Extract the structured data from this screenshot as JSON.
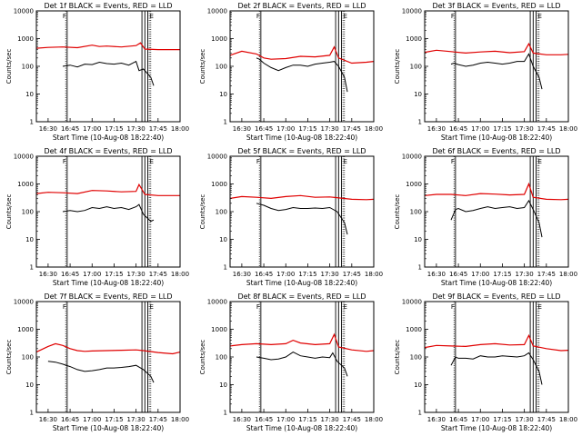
{
  "ylabel": "Counts/sec",
  "xlabel": "Start Time (10-Aug-08 18:22:40)",
  "x_ticks": [
    "16:30",
    "16:45",
    "17:00",
    "17:15",
    "17:30",
    "17:45",
    "18:00"
  ],
  "y_ticks": [
    "1",
    "10",
    "100",
    "1000",
    "10000"
  ],
  "marker_labels": [
    "F",
    "E"
  ],
  "colors": {
    "events": "#000000",
    "lld": "#e00000",
    "axes": "#000000"
  },
  "chart_data": [
    {
      "type": "line",
      "title": "Det 1f BLACK = Events, RED = LLD",
      "xlim": [
        "16:22",
        "18:00"
      ],
      "ylim": [
        1,
        10000
      ],
      "yscale": "log",
      "markers": {
        "solid": [
          "16:43",
          "17:34",
          "17:36",
          "17:38"
        ],
        "dotted": [
          "16:42",
          "17:39",
          "17:40"
        ]
      },
      "series": [
        {
          "name": "Events",
          "x": [
            "16:40",
            "16:45",
            "16:50",
            "16:55",
            "17:00",
            "17:05",
            "17:10",
            "17:15",
            "17:20",
            "17:25",
            "17:30",
            "17:32",
            "17:35",
            "17:40",
            "17:42"
          ],
          "values": [
            100,
            110,
            95,
            120,
            115,
            140,
            125,
            120,
            130,
            110,
            150,
            70,
            80,
            40,
            20
          ]
        },
        {
          "name": "LLD",
          "x": [
            "16:22",
            "16:30",
            "16:40",
            "16:50",
            "17:00",
            "17:05",
            "17:10",
            "17:20",
            "17:30",
            "17:33",
            "17:36",
            "17:45",
            "17:55",
            "18:00"
          ],
          "values": [
            450,
            480,
            500,
            470,
            580,
            520,
            540,
            500,
            560,
            700,
            420,
            400,
            400,
            400
          ]
        }
      ]
    },
    {
      "type": "line",
      "title": "Det 2f BLACK = Events, RED = LLD",
      "xlim": [
        "16:22",
        "18:00"
      ],
      "ylim": [
        1,
        10000
      ],
      "yscale": "log",
      "markers": {
        "solid": [
          "16:43",
          "17:34",
          "17:36",
          "17:38"
        ],
        "dotted": [
          "16:42",
          "17:39",
          "17:40"
        ]
      },
      "series": [
        {
          "name": "Events",
          "x": [
            "16:40",
            "16:42",
            "16:45",
            "16:50",
            "16:55",
            "17:00",
            "17:05",
            "17:10",
            "17:15",
            "17:20",
            "17:25",
            "17:30",
            "17:33",
            "17:36",
            "17:40",
            "17:42"
          ],
          "values": [
            200,
            180,
            130,
            90,
            70,
            90,
            110,
            110,
            100,
            120,
            130,
            140,
            150,
            100,
            40,
            12
          ]
        },
        {
          "name": "LLD",
          "x": [
            "16:22",
            "16:30",
            "16:40",
            "16:45",
            "16:50",
            "17:00",
            "17:10",
            "17:20",
            "17:30",
            "17:33",
            "17:36",
            "17:45",
            "17:55",
            "18:00"
          ],
          "values": [
            250,
            350,
            280,
            200,
            180,
            190,
            230,
            220,
            250,
            500,
            200,
            130,
            140,
            150
          ]
        }
      ]
    },
    {
      "type": "line",
      "title": "Det 3f BLACK = Events, RED = LLD",
      "xlim": [
        "16:22",
        "18:00"
      ],
      "ylim": [
        1,
        10000
      ],
      "yscale": "log",
      "markers": {
        "solid": [
          "16:43",
          "17:34",
          "17:36",
          "17:38"
        ],
        "dotted": [
          "16:42",
          "17:39",
          "17:40"
        ]
      },
      "series": [
        {
          "name": "Events",
          "x": [
            "16:40",
            "16:42",
            "16:45",
            "16:50",
            "16:55",
            "17:00",
            "17:05",
            "17:10",
            "17:15",
            "17:20",
            "17:25",
            "17:30",
            "17:33",
            "17:36",
            "17:40",
            "17:42"
          ],
          "values": [
            120,
            130,
            115,
            100,
            110,
            130,
            140,
            130,
            120,
            130,
            150,
            150,
            280,
            100,
            40,
            15
          ]
        },
        {
          "name": "LLD",
          "x": [
            "16:22",
            "16:30",
            "16:40",
            "16:50",
            "17:00",
            "17:10",
            "17:20",
            "17:30",
            "17:33",
            "17:36",
            "17:45",
            "17:55",
            "18:00"
          ],
          "values": [
            320,
            380,
            340,
            300,
            330,
            350,
            310,
            340,
            650,
            300,
            260,
            260,
            270
          ]
        }
      ]
    },
    {
      "type": "line",
      "title": "Det 4f BLACK = Events, RED = LLD",
      "xlim": [
        "16:22",
        "18:00"
      ],
      "ylim": [
        1,
        10000
      ],
      "yscale": "log",
      "markers": {
        "solid": [
          "16:43",
          "17:34",
          "17:36",
          "17:38"
        ],
        "dotted": [
          "16:42",
          "17:39",
          "17:40"
        ]
      },
      "series": [
        {
          "name": "Events",
          "x": [
            "16:40",
            "16:45",
            "16:50",
            "16:55",
            "17:00",
            "17:05",
            "17:10",
            "17:15",
            "17:20",
            "17:25",
            "17:30",
            "17:32",
            "17:35",
            "17:40",
            "17:42"
          ],
          "values": [
            100,
            110,
            100,
            110,
            140,
            130,
            150,
            130,
            140,
            120,
            150,
            180,
            80,
            45,
            50
          ]
        },
        {
          "name": "LLD",
          "x": [
            "16:22",
            "16:30",
            "16:40",
            "16:50",
            "17:00",
            "17:10",
            "17:20",
            "17:30",
            "17:32",
            "17:36",
            "17:45",
            "17:55",
            "18:00"
          ],
          "values": [
            450,
            500,
            480,
            450,
            580,
            560,
            520,
            540,
            950,
            420,
            380,
            380,
            380
          ]
        }
      ]
    },
    {
      "type": "line",
      "title": "Det 5f BLACK = Events, RED = LLD",
      "xlim": [
        "16:22",
        "18:00"
      ],
      "ylim": [
        1,
        10000
      ],
      "yscale": "log",
      "markers": {
        "solid": [
          "16:43",
          "17:34",
          "17:36",
          "17:38"
        ],
        "dotted": [
          "16:42",
          "17:39",
          "17:40"
        ]
      },
      "series": [
        {
          "name": "Events",
          "x": [
            "16:40",
            "16:45",
            "16:50",
            "16:55",
            "17:00",
            "17:05",
            "17:10",
            "17:15",
            "17:20",
            "17:25",
            "17:30",
            "17:35",
            "17:40",
            "17:42"
          ],
          "values": [
            200,
            170,
            130,
            110,
            120,
            140,
            130,
            130,
            135,
            130,
            140,
            100,
            40,
            15
          ]
        },
        {
          "name": "LLD",
          "x": [
            "16:22",
            "16:30",
            "16:40",
            "16:50",
            "17:00",
            "17:10",
            "17:20",
            "17:30",
            "17:35",
            "17:45",
            "17:55",
            "18:00"
          ],
          "values": [
            300,
            350,
            330,
            300,
            350,
            380,
            330,
            340,
            320,
            280,
            270,
            280
          ]
        }
      ]
    },
    {
      "type": "line",
      "title": "Det 6f BLACK = Events, RED = LLD",
      "xlim": [
        "16:22",
        "18:00"
      ],
      "ylim": [
        1,
        10000
      ],
      "yscale": "log",
      "markers": {
        "solid": [
          "16:43",
          "17:34",
          "17:36",
          "17:38"
        ],
        "dotted": [
          "16:42",
          "17:39",
          "17:40"
        ]
      },
      "series": [
        {
          "name": "Events",
          "x": [
            "16:40",
            "16:43",
            "16:45",
            "16:50",
            "16:55",
            "17:00",
            "17:05",
            "17:10",
            "17:15",
            "17:20",
            "17:25",
            "17:30",
            "17:33",
            "17:36",
            "17:40",
            "17:42"
          ],
          "values": [
            50,
            120,
            130,
            100,
            110,
            130,
            150,
            130,
            140,
            150,
            130,
            140,
            250,
            120,
            40,
            12
          ]
        },
        {
          "name": "LLD",
          "x": [
            "16:22",
            "16:30",
            "16:40",
            "16:50",
            "17:00",
            "17:10",
            "17:20",
            "17:30",
            "17:33",
            "17:36",
            "17:45",
            "17:55",
            "18:00"
          ],
          "values": [
            380,
            420,
            420,
            380,
            450,
            430,
            400,
            420,
            1000,
            330,
            280,
            270,
            280
          ]
        }
      ]
    },
    {
      "type": "line",
      "title": "Det 7f BLACK = Events, RED = LLD",
      "xlim": [
        "16:22",
        "18:00"
      ],
      "ylim": [
        1,
        10000
      ],
      "yscale": "log",
      "markers": {
        "solid": [
          "16:43",
          "17:34",
          "17:36",
          "17:38"
        ],
        "dotted": [
          "16:42",
          "17:39",
          "17:40"
        ]
      },
      "series": [
        {
          "name": "Events",
          "x": [
            "16:30",
            "16:35",
            "16:40",
            "16:45",
            "16:50",
            "16:55",
            "17:00",
            "17:05",
            "17:10",
            "17:15",
            "17:20",
            "17:25",
            "17:30",
            "17:35",
            "17:40",
            "17:42"
          ],
          "values": [
            70,
            65,
            55,
            45,
            35,
            30,
            32,
            35,
            40,
            40,
            42,
            45,
            50,
            35,
            20,
            12
          ]
        },
        {
          "name": "LLD",
          "x": [
            "16:22",
            "16:30",
            "16:35",
            "16:40",
            "16:45",
            "16:50",
            "16:55",
            "17:00",
            "17:10",
            "17:20",
            "17:30",
            "17:35",
            "17:45",
            "17:55",
            "18:00"
          ],
          "values": [
            150,
            240,
            300,
            260,
            200,
            170,
            160,
            165,
            170,
            175,
            180,
            170,
            145,
            130,
            150
          ]
        }
      ]
    },
    {
      "type": "line",
      "title": "Det 8f BLACK = Events, RED = LLD",
      "xlim": [
        "16:22",
        "18:00"
      ],
      "ylim": [
        1,
        10000
      ],
      "yscale": "log",
      "markers": {
        "solid": [
          "16:43",
          "17:34",
          "17:36",
          "17:38"
        ],
        "dotted": [
          "16:42",
          "17:39",
          "17:40"
        ]
      },
      "series": [
        {
          "name": "Events",
          "x": [
            "16:40",
            "16:45",
            "16:50",
            "16:55",
            "17:00",
            "17:05",
            "17:10",
            "17:15",
            "17:20",
            "17:25",
            "17:30",
            "17:32",
            "17:35",
            "17:40",
            "17:42"
          ],
          "values": [
            100,
            90,
            80,
            85,
            100,
            150,
            110,
            100,
            90,
            100,
            95,
            140,
            70,
            40,
            20
          ]
        },
        {
          "name": "LLD",
          "x": [
            "16:22",
            "16:30",
            "16:40",
            "16:50",
            "17:00",
            "17:05",
            "17:10",
            "17:20",
            "17:30",
            "17:33",
            "17:36",
            "17:45",
            "17:55",
            "18:00"
          ],
          "values": [
            250,
            280,
            300,
            280,
            300,
            400,
            320,
            280,
            300,
            650,
            230,
            180,
            160,
            170
          ]
        }
      ]
    },
    {
      "type": "line",
      "title": "Det 9f BLACK = Events, RED = LLD",
      "xlim": [
        "16:22",
        "18:00"
      ],
      "ylim": [
        1,
        10000
      ],
      "yscale": "log",
      "markers": {
        "solid": [
          "16:43",
          "17:34",
          "17:36",
          "17:38"
        ],
        "dotted": [
          "16:42",
          "17:39",
          "17:40"
        ]
      },
      "series": [
        {
          "name": "Events",
          "x": [
            "16:40",
            "16:43",
            "16:45",
            "16:50",
            "16:55",
            "17:00",
            "17:05",
            "17:10",
            "17:15",
            "17:20",
            "17:25",
            "17:30",
            "17:33",
            "17:36",
            "17:40",
            "17:42"
          ],
          "values": [
            50,
            100,
            90,
            90,
            85,
            110,
            100,
            100,
            110,
            105,
            100,
            110,
            140,
            80,
            30,
            10
          ]
        },
        {
          "name": "LLD",
          "x": [
            "16:22",
            "16:30",
            "16:40",
            "16:50",
            "17:00",
            "17:10",
            "17:20",
            "17:30",
            "17:33",
            "17:36",
            "17:45",
            "17:55",
            "18:00"
          ],
          "values": [
            220,
            260,
            250,
            240,
            280,
            300,
            270,
            280,
            600,
            250,
            200,
            170,
            175
          ]
        }
      ]
    }
  ]
}
